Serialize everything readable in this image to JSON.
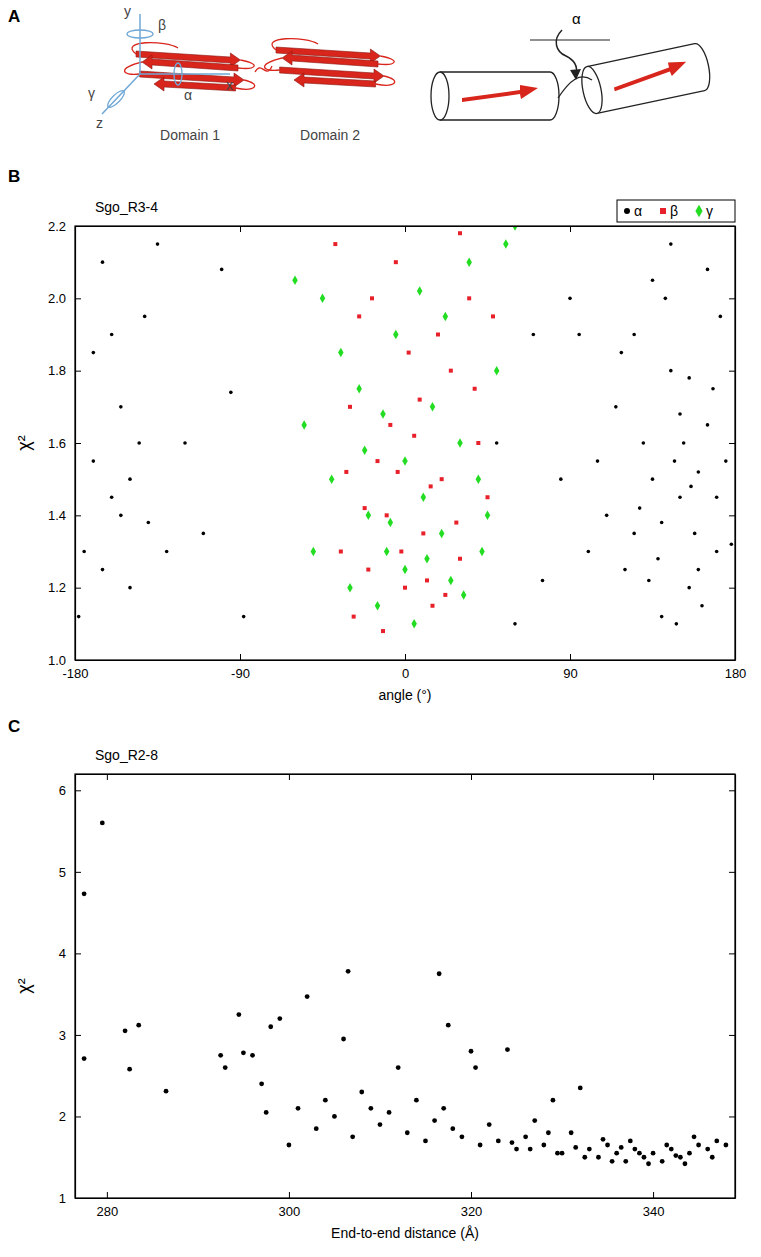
{
  "diagram": {
    "panel_label": "A",
    "axis_labels": [
      "x",
      "y",
      "z"
    ],
    "rotation_labels": [
      "α",
      "β",
      "γ"
    ],
    "domain_labels": [
      "Domain 1",
      "Domain 2"
    ],
    "hinge_label": "α"
  },
  "chart_data": [
    {
      "type": "scatter",
      "panel_label": "B",
      "title": "Sgo_R3-4",
      "x_label": "angle (°)",
      "y_label": "χ²",
      "xlim": [
        -180,
        180
      ],
      "xticks": [
        -180,
        -90,
        0,
        90,
        180
      ],
      "ylim": [
        1.0,
        2.2
      ],
      "yticks": [
        {
          "value": 1.0,
          "label": "1.0"
        },
        {
          "value": 1.2,
          "label": "1.2"
        },
        {
          "value": 1.4,
          "label": "1.4"
        },
        {
          "value": 1.6,
          "label": "1.6"
        },
        {
          "value": 1.8,
          "label": "1.8"
        },
        {
          "value": 2.0,
          "label": "2.0"
        },
        {
          "value": 2.2,
          "label": "2.2"
        }
      ],
      "legend": "top-right",
      "series": [
        {
          "name": "α",
          "color": "#000000",
          "marker": "circle",
          "x": [
            150,
            140,
            160,
            130,
            170,
            120,
            145,
            155,
            165,
            135,
            110,
            175,
            125,
            148,
            158,
            142,
            168,
            115,
            152,
            138,
            162,
            128,
            172,
            105,
            145,
            156,
            133,
            178,
            118,
            150,
            165,
            140,
            100,
            95,
            170,
            125,
            155,
            135,
            160,
            147,
            -175,
            -170,
            -165,
            -160,
            -155,
            -150,
            -145,
            -140,
            -135,
            -170,
            -178,
            -160,
            -150,
            -142,
            -165,
            -155,
            -120,
            -110,
            -100,
            -95,
            -88,
            -130,
            60,
            75,
            85,
            50,
            90,
            70
          ],
          "values": [
            1.45,
            1.38,
            1.52,
            1.6,
            1.3,
            1.25,
            1.8,
            1.2,
            1.65,
            1.5,
            1.4,
            1.55,
            1.9,
            1.1,
            1.35,
            2.0,
            1.75,
            1.7,
            1.6,
            1.28,
            1.15,
            1.42,
            1.95,
            1.55,
            2.15,
            1.48,
            1.22,
            1.32,
            1.85,
            1.68,
            2.08,
            1.12,
            1.3,
            1.9,
            1.45,
            1.35,
            1.78,
            2.05,
            1.25,
            1.55,
            1.3,
            1.55,
            2.1,
            1.45,
            1.7,
            1.2,
            1.6,
            1.38,
            2.15,
            1.85,
            1.12,
            1.9,
            1.5,
            1.95,
            1.25,
            1.4,
            1.6,
            1.35,
            2.08,
            1.74,
            1.12,
            1.3,
            1.1,
            1.22,
            1.5,
            1.6,
            2.0,
            1.9
          ]
        },
        {
          "name": "β",
          "color": "#e8202a",
          "marker": "square",
          "x": [
            -35,
            -20,
            -10,
            0,
            10,
            20,
            30,
            40,
            -30,
            -15,
            5,
            15,
            25,
            -25,
            -5,
            35,
            45,
            -38,
            -12,
            8,
            18,
            -22,
            28,
            -2,
            12,
            -32,
            2,
            22,
            -8,
            38,
            -18,
            30,
            -28,
            14,
            -4,
            48
          ],
          "values": [
            1.3,
            1.25,
            1.4,
            1.2,
            1.35,
            1.5,
            1.28,
            1.6,
            1.7,
            1.55,
            1.62,
            1.15,
            1.8,
            1.95,
            2.1,
            2.0,
            1.45,
            2.15,
            1.08,
            1.72,
            1.9,
            1.42,
            1.38,
            1.3,
            1.22,
            1.52,
            1.85,
            1.18,
            1.65,
            1.75,
            2.0,
            2.18,
            1.12,
            1.48,
            1.52,
            1.95
          ]
        },
        {
          "name": "γ",
          "color": "#22dd22",
          "marker": "diamond",
          "x": [
            -50,
            -40,
            -30,
            -20,
            -10,
            0,
            10,
            20,
            30,
            40,
            50,
            -45,
            -25,
            -5,
            15,
            35,
            55,
            -55,
            -15,
            5,
            25,
            45,
            -35,
            0,
            -8,
            12,
            22,
            -60,
            60,
            32,
            -22,
            8,
            -12,
            42
          ],
          "values": [
            1.3,
            1.5,
            1.2,
            1.4,
            1.3,
            1.25,
            1.45,
            1.35,
            1.6,
            1.5,
            1.8,
            2.0,
            1.75,
            1.9,
            1.7,
            2.1,
            2.15,
            1.65,
            1.15,
            1.1,
            1.22,
            1.4,
            1.85,
            1.55,
            1.38,
            1.28,
            1.95,
            2.05,
            2.2,
            1.18,
            1.58,
            2.02,
            1.68,
            1.3
          ]
        }
      ]
    },
    {
      "type": "scatter",
      "panel_label": "C",
      "title": "Sgo_R2-8",
      "x_label": "End-to-end distance (Å)",
      "y_label": "χ²",
      "xlim": [
        276.5,
        349
      ],
      "xticks": [
        280,
        300,
        320,
        340
      ],
      "ylim": [
        1,
        6.2
      ],
      "yticks": [
        1,
        2,
        3,
        4,
        5,
        6
      ],
      "series": [
        {
          "color": "#000000",
          "marker": "circle",
          "x": [
            277.5,
            277.5,
            279.5,
            282,
            283.5,
            282.5,
            286.5,
            292.5,
            293,
            294.5,
            295,
            296,
            297,
            298,
            299,
            297.5,
            300,
            301,
            302,
            303,
            304,
            305,
            306,
            306.5,
            307,
            308,
            309,
            310,
            311,
            312,
            313,
            314,
            315,
            316,
            316.5,
            317,
            317.5,
            318,
            319,
            320,
            320.5,
            321,
            322,
            323,
            324,
            325,
            326,
            327,
            328,
            329,
            330,
            331,
            332,
            333,
            334,
            335,
            336,
            337,
            338,
            339,
            340,
            341,
            342,
            343,
            344,
            345,
            346,
            347,
            348,
            335.5,
            337.5,
            339.5,
            341.5,
            343.5,
            338.5,
            336.5,
            334.5,
            332.5,
            331.5,
            329.5,
            328.5,
            326.5,
            324.5,
            344.5,
            346.5,
            342.5
          ],
          "values": [
            4.73,
            2.71,
            5.6,
            3.05,
            3.12,
            2.58,
            2.31,
            2.75,
            2.6,
            3.25,
            2.78,
            2.75,
            2.4,
            3.1,
            3.2,
            2.05,
            1.65,
            2.1,
            3.47,
            1.85,
            2.2,
            2.0,
            2.95,
            3.78,
            1.75,
            2.3,
            2.1,
            1.9,
            2.05,
            2.6,
            1.8,
            2.2,
            1.7,
            1.95,
            3.75,
            2.1,
            3.12,
            1.85,
            1.75,
            2.8,
            2.6,
            1.65,
            1.9,
            1.7,
            2.82,
            1.6,
            1.75,
            1.95,
            1.65,
            2.2,
            1.55,
            1.8,
            2.35,
            1.6,
            1.5,
            1.65,
            1.55,
            1.45,
            1.6,
            1.5,
            1.55,
            1.45,
            1.6,
            1.5,
            1.55,
            1.65,
            1.6,
            1.7,
            1.65,
            1.45,
            1.7,
            1.42,
            1.65,
            1.42,
            1.55,
            1.62,
            1.72,
            1.5,
            1.62,
            1.55,
            1.8,
            1.6,
            1.68,
            1.75,
            1.5,
            1.52
          ]
        }
      ]
    }
  ]
}
